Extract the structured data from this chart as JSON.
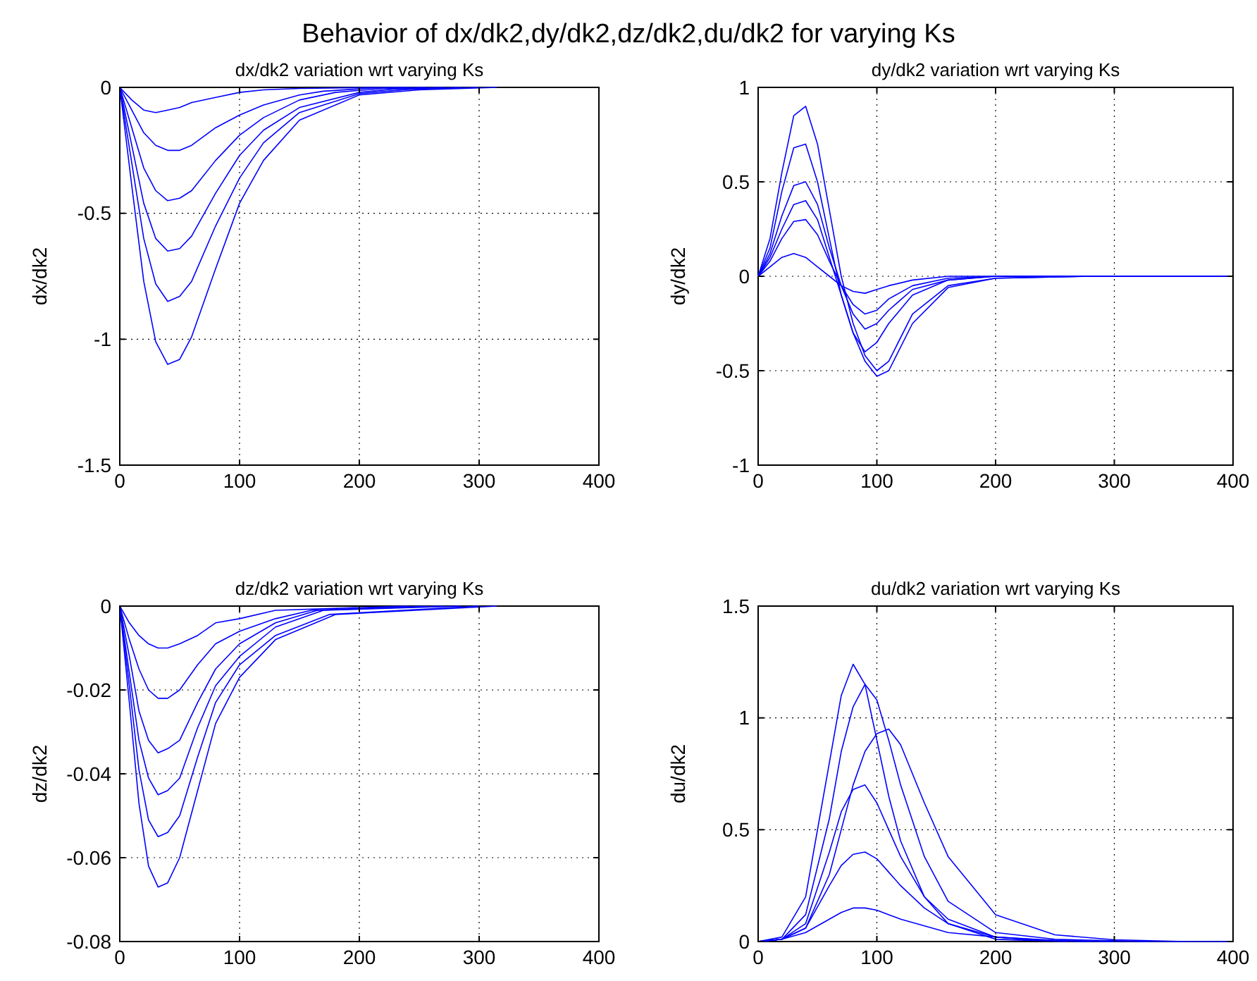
{
  "chart_data": [
    {
      "type": "other",
      "title": "Behavior of dx/dk2,dy/dk2,dz/dk2,du/dk2 for varying Ks"
    },
    {
      "type": "line",
      "title": "dx/dk2 variation wrt varying Ks",
      "ylabel": "dx/dk2",
      "xlim": [
        0,
        400
      ],
      "xticks": [
        0,
        100,
        200,
        300,
        400
      ],
      "ylim": [
        -1.5,
        0
      ],
      "yticks": [
        -1.5,
        -1,
        -0.5,
        0
      ],
      "grid": true,
      "line_style": "solid",
      "series": [
        {
          "color": "#0000ff",
          "x": [
            0,
            10,
            20,
            30,
            40,
            50,
            60,
            80,
            100,
            120,
            150,
            200,
            250,
            315
          ],
          "values": [
            0,
            -0.39,
            -0.77,
            -1.01,
            -1.1,
            -1.08,
            -0.99,
            -0.72,
            -0.46,
            -0.29,
            -0.13,
            -0.03,
            -0.01,
            0
          ]
        },
        {
          "color": "#0000ff",
          "x": [
            0,
            10,
            20,
            30,
            40,
            50,
            60,
            80,
            100,
            120,
            150,
            200,
            240,
            300
          ],
          "values": [
            0,
            -0.3,
            -0.6,
            -0.78,
            -0.85,
            -0.83,
            -0.77,
            -0.55,
            -0.36,
            -0.22,
            -0.1,
            -0.025,
            -0.008,
            0
          ]
        },
        {
          "color": "#0000ff",
          "x": [
            0,
            10,
            20,
            30,
            40,
            50,
            60,
            80,
            100,
            120,
            150,
            200,
            230,
            285
          ],
          "values": [
            0,
            -0.23,
            -0.46,
            -0.6,
            -0.65,
            -0.64,
            -0.59,
            -0.42,
            -0.27,
            -0.17,
            -0.08,
            -0.02,
            -0.006,
            0
          ]
        },
        {
          "color": "#0000ff",
          "x": [
            0,
            10,
            20,
            30,
            40,
            50,
            60,
            80,
            100,
            120,
            150,
            180,
            220,
            270
          ],
          "values": [
            0,
            -0.16,
            -0.32,
            -0.41,
            -0.45,
            -0.44,
            -0.41,
            -0.29,
            -0.19,
            -0.12,
            -0.05,
            -0.02,
            -0.004,
            0
          ]
        },
        {
          "color": "#0000ff",
          "x": [
            0,
            10,
            20,
            30,
            40,
            50,
            60,
            80,
            100,
            120,
            150,
            170,
            210,
            255
          ],
          "values": [
            0,
            -0.09,
            -0.18,
            -0.23,
            -0.25,
            -0.25,
            -0.23,
            -0.16,
            -0.11,
            -0.07,
            -0.03,
            -0.015,
            -0.003,
            0
          ]
        },
        {
          "color": "#0000ff",
          "x": [
            0,
            10,
            20,
            30,
            40,
            50,
            60,
            80,
            100,
            120,
            150,
            200,
            240
          ],
          "values": [
            0,
            -0.05,
            -0.09,
            -0.1,
            -0.09,
            -0.08,
            -0.06,
            -0.04,
            -0.02,
            -0.01,
            -0.004,
            -0.001,
            0
          ]
        }
      ]
    },
    {
      "type": "line",
      "title": "dy/dk2 variation wrt varying Ks",
      "ylabel": "dy/dk2",
      "xlim": [
        0,
        400
      ],
      "xticks": [
        0,
        100,
        200,
        300,
        400
      ],
      "ylim": [
        -1,
        1
      ],
      "yticks": [
        -1,
        -0.5,
        0,
        0.5,
        1
      ],
      "grid": true,
      "line_style": "solid",
      "series": [
        {
          "color": "#0000ff",
          "x": [
            0,
            10,
            20,
            30,
            40,
            50,
            60,
            70,
            80,
            90,
            100,
            110,
            130,
            160,
            200,
            280,
            400
          ],
          "values": [
            0,
            0.2,
            0.55,
            0.85,
            0.9,
            0.7,
            0.35,
            0,
            -0.25,
            -0.42,
            -0.5,
            -0.45,
            -0.2,
            -0.05,
            -0.01,
            0,
            0
          ]
        },
        {
          "color": "#0000ff",
          "x": [
            0,
            10,
            20,
            30,
            40,
            50,
            60,
            70,
            80,
            90,
            100,
            110,
            130,
            160,
            200,
            280,
            400
          ],
          "values": [
            0,
            0.15,
            0.45,
            0.68,
            0.7,
            0.5,
            0.2,
            -0.1,
            -0.3,
            -0.4,
            -0.35,
            -0.25,
            -0.1,
            -0.02,
            0,
            0,
            0
          ]
        },
        {
          "color": "#0000ff",
          "x": [
            0,
            10,
            20,
            30,
            40,
            50,
            60,
            70,
            80,
            90,
            100,
            110,
            130,
            160,
            200,
            280,
            400
          ],
          "values": [
            0,
            0.12,
            0.32,
            0.48,
            0.5,
            0.38,
            0.15,
            -0.05,
            -0.2,
            -0.28,
            -0.25,
            -0.18,
            -0.07,
            -0.02,
            0,
            0,
            0
          ]
        },
        {
          "color": "#0000ff",
          "x": [
            0,
            10,
            20,
            30,
            40,
            50,
            60,
            70,
            80,
            90,
            100,
            110,
            130,
            160,
            200,
            280,
            400
          ],
          "values": [
            0,
            0.08,
            0.2,
            0.29,
            0.3,
            0.22,
            0.08,
            -0.05,
            -0.15,
            -0.2,
            -0.18,
            -0.12,
            -0.05,
            -0.01,
            0,
            0,
            0
          ]
        },
        {
          "color": "#0000ff",
          "x": [
            0,
            10,
            20,
            30,
            40,
            50,
            60,
            70,
            80,
            90,
            100,
            110,
            130,
            160,
            200,
            280,
            400
          ],
          "values": [
            0,
            0.05,
            0.1,
            0.12,
            0.1,
            0.05,
            0,
            -0.05,
            -0.08,
            -0.09,
            -0.07,
            -0.05,
            -0.02,
            0,
            0,
            0,
            0
          ]
        },
        {
          "color": "#0000ff",
          "x": [
            0,
            10,
            20,
            30,
            40,
            50,
            60,
            70,
            80,
            90,
            100,
            110,
            130,
            160,
            200,
            280,
            400
          ],
          "values": [
            0,
            0.1,
            0.25,
            0.38,
            0.4,
            0.3,
            0.1,
            -0.1,
            -0.3,
            -0.45,
            -0.53,
            -0.5,
            -0.25,
            -0.06,
            -0.01,
            0,
            0
          ]
        }
      ]
    },
    {
      "type": "line",
      "title": "dz/dk2 variation wrt varying Ks",
      "ylabel": "dz/dk2",
      "xlim": [
        0,
        400
      ],
      "xticks": [
        0,
        100,
        200,
        300,
        400
      ],
      "ylim": [
        -0.08,
        0
      ],
      "yticks": [
        -0.08,
        -0.06,
        -0.04,
        -0.02,
        0
      ],
      "grid": true,
      "line_style": "solid",
      "series": [
        {
          "color": "#0000ff",
          "x": [
            0,
            8,
            16,
            24,
            32,
            40,
            50,
            65,
            80,
            100,
            130,
            180,
            315
          ],
          "values": [
            0,
            -0.023,
            -0.047,
            -0.062,
            -0.067,
            -0.066,
            -0.06,
            -0.044,
            -0.028,
            -0.017,
            -0.008,
            -0.002,
            0
          ]
        },
        {
          "color": "#0000ff",
          "x": [
            0,
            8,
            16,
            24,
            32,
            40,
            50,
            65,
            80,
            100,
            130,
            175,
            300
          ],
          "values": [
            0,
            -0.019,
            -0.039,
            -0.051,
            -0.055,
            -0.054,
            -0.05,
            -0.036,
            -0.023,
            -0.014,
            -0.007,
            -0.002,
            0
          ]
        },
        {
          "color": "#0000ff",
          "x": [
            0,
            8,
            16,
            24,
            32,
            40,
            50,
            65,
            80,
            100,
            130,
            170,
            285
          ],
          "values": [
            0,
            -0.016,
            -0.032,
            -0.041,
            -0.045,
            -0.044,
            -0.041,
            -0.029,
            -0.019,
            -0.012,
            -0.005,
            -0.001,
            0
          ]
        },
        {
          "color": "#0000ff",
          "x": [
            0,
            8,
            16,
            24,
            32,
            40,
            50,
            65,
            80,
            100,
            130,
            165,
            270
          ],
          "values": [
            0,
            -0.012,
            -0.025,
            -0.032,
            -0.035,
            -0.034,
            -0.032,
            -0.023,
            -0.015,
            -0.009,
            -0.004,
            -0.001,
            0
          ]
        },
        {
          "color": "#0000ff",
          "x": [
            0,
            8,
            16,
            24,
            32,
            40,
            50,
            65,
            80,
            100,
            130,
            160,
            255
          ],
          "values": [
            0,
            -0.008,
            -0.015,
            -0.02,
            -0.022,
            -0.022,
            -0.02,
            -0.014,
            -0.009,
            -0.006,
            -0.003,
            -0.001,
            0
          ]
        },
        {
          "color": "#0000ff",
          "x": [
            0,
            8,
            16,
            24,
            32,
            40,
            50,
            65,
            80,
            100,
            130,
            240
          ],
          "values": [
            0,
            -0.004,
            -0.007,
            -0.009,
            -0.01,
            -0.01,
            -0.009,
            -0.007,
            -0.004,
            -0.003,
            -0.001,
            0
          ]
        }
      ]
    },
    {
      "type": "line",
      "title": "du/dk2 variation wrt varying Ks",
      "ylabel": "du/dk2",
      "xlim": [
        0,
        400
      ],
      "xticks": [
        0,
        100,
        200,
        300,
        400
      ],
      "ylim": [
        0,
        1.5
      ],
      "yticks": [
        0,
        0.5,
        1,
        1.5
      ],
      "grid": true,
      "line_style": "solid",
      "series": [
        {
          "color": "#0000ff",
          "x": [
            0,
            20,
            40,
            60,
            70,
            80,
            90,
            100,
            110,
            120,
            140,
            160,
            200,
            250,
            400
          ],
          "values": [
            0,
            0.02,
            0.2,
            0.8,
            1.1,
            1.24,
            1.15,
            0.9,
            0.65,
            0.45,
            0.2,
            0.08,
            0.01,
            0.002,
            0
          ]
        },
        {
          "color": "#0000ff",
          "x": [
            0,
            20,
            40,
            60,
            70,
            80,
            90,
            100,
            110,
            120,
            140,
            160,
            200,
            250,
            330
          ],
          "values": [
            0,
            0.01,
            0.12,
            0.55,
            0.85,
            1.05,
            1.15,
            1.08,
            0.9,
            0.7,
            0.38,
            0.18,
            0.04,
            0.01,
            0
          ]
        },
        {
          "color": "#0000ff",
          "x": [
            0,
            20,
            40,
            60,
            70,
            80,
            90,
            100,
            110,
            120,
            140,
            160,
            200,
            250,
            300,
            360
          ],
          "values": [
            0,
            0.01,
            0.06,
            0.3,
            0.5,
            0.7,
            0.85,
            0.93,
            0.95,
            0.88,
            0.62,
            0.38,
            0.12,
            0.03,
            0.008,
            0
          ]
        },
        {
          "color": "#0000ff",
          "x": [
            0,
            20,
            40,
            60,
            70,
            80,
            90,
            100,
            110,
            120,
            140,
            160,
            200,
            250,
            300
          ],
          "values": [
            0,
            0.01,
            0.08,
            0.4,
            0.58,
            0.68,
            0.7,
            0.62,
            0.5,
            0.38,
            0.2,
            0.1,
            0.02,
            0.005,
            0
          ]
        },
        {
          "color": "#0000ff",
          "x": [
            0,
            20,
            40,
            60,
            70,
            80,
            90,
            100,
            110,
            120,
            140,
            160,
            200,
            240,
            280
          ],
          "values": [
            0,
            0.01,
            0.06,
            0.25,
            0.34,
            0.39,
            0.4,
            0.37,
            0.31,
            0.25,
            0.15,
            0.08,
            0.02,
            0.006,
            0
          ]
        },
        {
          "color": "#0000ff",
          "x": [
            0,
            20,
            40,
            60,
            70,
            80,
            90,
            100,
            110,
            120,
            140,
            160,
            200,
            230,
            260
          ],
          "values": [
            0,
            0.01,
            0.04,
            0.1,
            0.13,
            0.15,
            0.15,
            0.14,
            0.12,
            0.1,
            0.07,
            0.04,
            0.02,
            0.008,
            0
          ]
        }
      ]
    }
  ]
}
